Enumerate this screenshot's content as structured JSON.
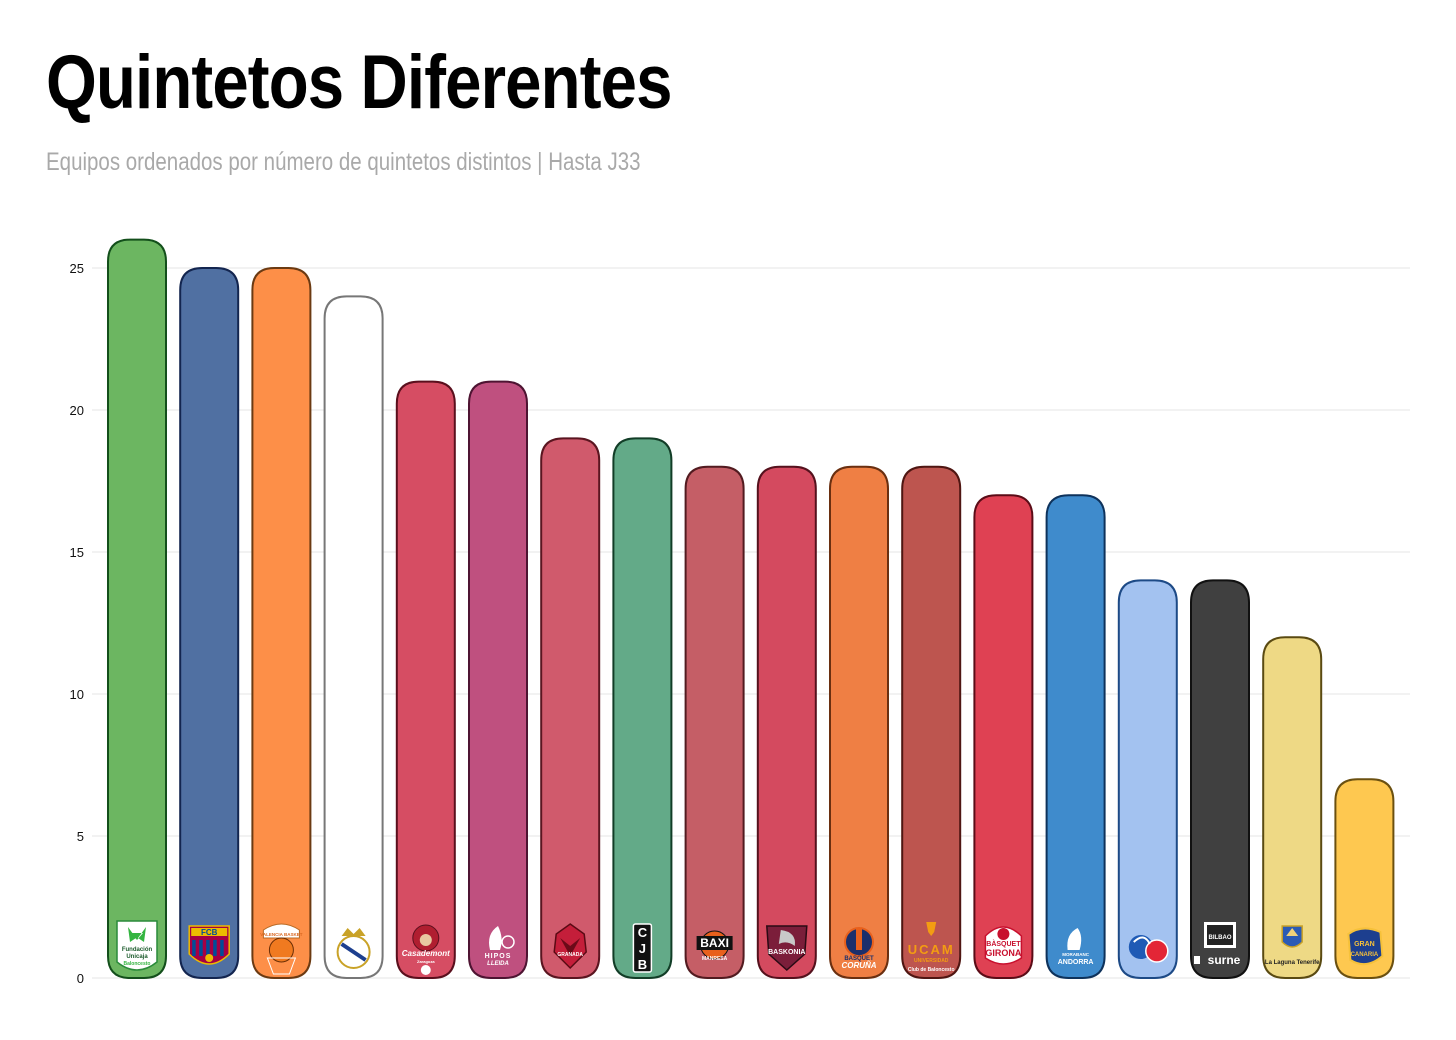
{
  "title": "Quintetos Diferentes",
  "subtitle": "Equipos ordenados por número de quintetos distintos | Hasta J33",
  "chart_data": {
    "type": "bar",
    "title": "Quintetos Diferentes",
    "subtitle": "Equipos ordenados por número de quintetos distintos | Hasta J33",
    "xlabel": "",
    "ylabel": "",
    "ylim": [
      0,
      26
    ],
    "yticks": [
      0,
      5,
      10,
      15,
      20,
      25
    ],
    "grid": "horizontal",
    "legend": "none",
    "teams": [
      {
        "logo": "unicaja-logo",
        "logo_text": [
          "Fundación",
          "Unicaja",
          "Baloncesto"
        ],
        "value": 26,
        "fill": "#6cb661",
        "stroke": "#134f1b"
      },
      {
        "logo": "barcelona-logo",
        "logo_text": [
          "FCB"
        ],
        "value": 25,
        "fill": "#5070a2",
        "stroke": "#13254f"
      },
      {
        "logo": "valencia-logo",
        "logo_text": [
          "VALENCIA BASKET"
        ],
        "value": 25,
        "fill": "#fd8f48",
        "stroke": "#6b3a12"
      },
      {
        "logo": "real-madrid-logo",
        "logo_text": [],
        "value": 24,
        "fill": "#ffffff",
        "stroke": "#777777"
      },
      {
        "logo": "zaragoza-logo",
        "logo_text": [
          "Casademont",
          "Zaragoza"
        ],
        "value": 21,
        "fill": "#d64d63",
        "stroke": "#5a0f1d"
      },
      {
        "logo": "lleida-logo",
        "logo_text": [
          "HIPOS",
          "LLEIDA"
        ],
        "value": 21,
        "fill": "#bf507f",
        "stroke": "#4e1432"
      },
      {
        "logo": "granada-logo",
        "logo_text": [
          "GRANADA"
        ],
        "value": 19,
        "fill": "#d05a6c",
        "stroke": "#5a1520"
      },
      {
        "logo": "joventut-logo",
        "logo_text": [
          "C",
          "J",
          "B"
        ],
        "value": 19,
        "fill": "#63aa88",
        "stroke": "#123d27"
      },
      {
        "logo": "manresa-logo",
        "logo_text": [
          "BAXI",
          "MANRESA"
        ],
        "value": 18,
        "fill": "#c55e66",
        "stroke": "#521b20"
      },
      {
        "logo": "baskonia-logo",
        "logo_text": [
          "BASKONIA"
        ],
        "value": 18,
        "fill": "#d44a5f",
        "stroke": "#55111d"
      },
      {
        "logo": "coruna-logo",
        "logo_text": [
          "BASQUET",
          "CORUÑA"
        ],
        "value": 18,
        "fill": "#ef7f44",
        "stroke": "#6a2f10"
      },
      {
        "logo": "ucam-logo",
        "logo_text": [
          "UCAM",
          "UNIVERSIDAD",
          "Club de Baloncesto"
        ],
        "value": 18,
        "fill": "#bd554f",
        "stroke": "#4f1612"
      },
      {
        "logo": "girona-logo",
        "logo_text": [
          "BÀSQUET",
          "GIRONA"
        ],
        "value": 17,
        "fill": "#df4153",
        "stroke": "#5b0c17"
      },
      {
        "logo": "andorra-logo",
        "logo_text": [
          "MORABANC",
          "ANDORRA"
        ],
        "value": 17,
        "fill": "#3f8bcc",
        "stroke": "#0e325b"
      },
      {
        "logo": "breogan-logo",
        "logo_text": [],
        "value": 14,
        "fill": "#a3c2f0",
        "stroke": "#1d4a86"
      },
      {
        "logo": "bilbao-logo",
        "logo_text": [
          "BILBAO BASKET",
          "surne"
        ],
        "value": 14,
        "fill": "#404040",
        "stroke": "#111111"
      },
      {
        "logo": "tenerife-logo",
        "logo_text": [
          "La Laguna Tenerife"
        ],
        "value": 12,
        "fill": "#eed985",
        "stroke": "#5a4a12"
      },
      {
        "logo": "gran-canaria-logo",
        "logo_text": [
          "GRAN",
          "CANARIA"
        ],
        "value": 7,
        "fill": "#fec850",
        "stroke": "#6b5010"
      }
    ]
  }
}
